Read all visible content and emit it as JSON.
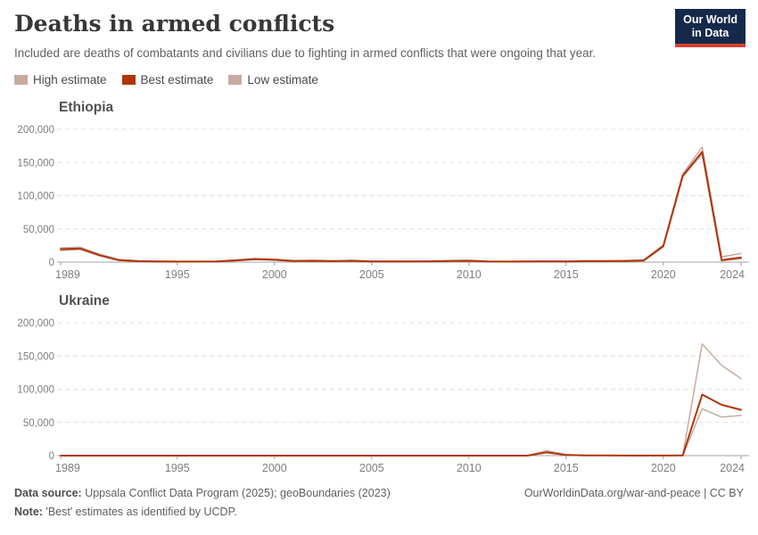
{
  "header": {
    "title": "Deaths in armed conflicts",
    "subtitle": "Included are deaths of combatants and civilians due to fighting in armed conflicts that were ongoing that year.",
    "logo": {
      "line1": "Our World",
      "line2": "in Data"
    }
  },
  "legend": {
    "items": [
      {
        "label": "High estimate",
        "color": "#C7ABA1"
      },
      {
        "label": "Best estimate",
        "color": "#B13507"
      },
      {
        "label": "Low estimate",
        "color": "#C7ABA1"
      }
    ]
  },
  "colors": {
    "best_line": "#B13507",
    "band_line": "#C7ABA1",
    "grid": "#e0e0e0",
    "axis": "#a3a3a3",
    "tick_text": "#7e7e7e",
    "logo_bg": "#15294B",
    "logo_strip": "#D7402F"
  },
  "footer": {
    "source_label": "Data source:",
    "source_text": " Uppsala Conflict Data Program (2025); geoBoundaries (2023)",
    "note_label": "Note:",
    "note_text": " 'Best' estimates as identified by UCDP.",
    "right_text": "OurWorldinData.org/war-and-peace | CC BY"
  },
  "chart_data": [
    {
      "type": "line",
      "title": "Ethiopia",
      "xlabel": "",
      "ylabel": "",
      "ylim": [
        0,
        200000
      ],
      "yticks": [
        0,
        50000,
        100000,
        150000,
        200000
      ],
      "xticks": [
        1989,
        1995,
        2000,
        2005,
        2010,
        2015,
        2020,
        2024
      ],
      "grid": true,
      "x": [
        1989,
        1990,
        1991,
        1992,
        1993,
        1994,
        1995,
        1996,
        1997,
        1998,
        1999,
        2000,
        2001,
        2002,
        2003,
        2004,
        2005,
        2006,
        2007,
        2008,
        2009,
        2010,
        2011,
        2012,
        2013,
        2014,
        2015,
        2016,
        2017,
        2018,
        2019,
        2020,
        2021,
        2022,
        2023,
        2024
      ],
      "series": [
        {
          "name": "High estimate",
          "color": "#C7ABA1",
          "width": 1.5,
          "values": [
            21500,
            22500,
            12000,
            4000,
            2000,
            1500,
            1200,
            1200,
            1500,
            3500,
            5500,
            4500,
            2500,
            2800,
            2200,
            2800,
            1500,
            1500,
            1500,
            1800,
            2500,
            2800,
            1500,
            1200,
            1500,
            1800,
            1500,
            2200,
            2200,
            2500,
            3500,
            26000,
            133000,
            173000,
            8000,
            13000
          ]
        },
        {
          "name": "Low estimate",
          "color": "#C7ABA1",
          "width": 1.5,
          "values": [
            17500,
            19000,
            9500,
            2500,
            1200,
            800,
            600,
            600,
            800,
            2000,
            4000,
            3000,
            1500,
            1700,
            1200,
            1700,
            800,
            800,
            800,
            1000,
            1500,
            1700,
            800,
            600,
            800,
            1000,
            800,
            1200,
            1200,
            1500,
            2000,
            23000,
            128000,
            163000,
            2000,
            5000
          ]
        },
        {
          "name": "Best estimate",
          "color": "#B13507",
          "width": 2,
          "values": [
            19500,
            20500,
            10500,
            3000,
            1500,
            1000,
            800,
            800,
            1000,
            2500,
            4500,
            3500,
            1800,
            2000,
            1500,
            2000,
            1000,
            1000,
            1000,
            1200,
            1800,
            2000,
            1000,
            800,
            1000,
            1200,
            1000,
            1500,
            1500,
            1800,
            2500,
            24000,
            130000,
            166000,
            3000,
            7000
          ]
        }
      ]
    },
    {
      "type": "line",
      "title": "Ukraine",
      "xlabel": "",
      "ylabel": "",
      "ylim": [
        0,
        200000
      ],
      "yticks": [
        0,
        50000,
        100000,
        150000,
        200000
      ],
      "xticks": [
        1989,
        1995,
        2000,
        2005,
        2010,
        2015,
        2020,
        2024
      ],
      "grid": true,
      "x": [
        1989,
        1990,
        1991,
        1992,
        1993,
        1994,
        1995,
        1996,
        1997,
        1998,
        1999,
        2000,
        2001,
        2002,
        2003,
        2004,
        2005,
        2006,
        2007,
        2008,
        2009,
        2010,
        2011,
        2012,
        2013,
        2014,
        2015,
        2016,
        2017,
        2018,
        2019,
        2020,
        2021,
        2022,
        2023,
        2024
      ],
      "series": [
        {
          "name": "High estimate",
          "color": "#C7ABA1",
          "width": 1.5,
          "values": [
            0,
            0,
            0,
            0,
            0,
            0,
            0,
            0,
            0,
            0,
            0,
            0,
            0,
            0,
            0,
            0,
            0,
            0,
            0,
            0,
            0,
            0,
            0,
            0,
            0,
            7500,
            1500,
            500,
            400,
            300,
            200,
            150,
            400,
            168000,
            136000,
            116000
          ]
        },
        {
          "name": "Low estimate",
          "color": "#C7ABA1",
          "width": 1.5,
          "values": [
            0,
            0,
            0,
            0,
            0,
            0,
            0,
            0,
            0,
            0,
            0,
            0,
            0,
            0,
            0,
            0,
            0,
            0,
            0,
            0,
            0,
            0,
            0,
            0,
            0,
            4300,
            800,
            300,
            200,
            150,
            100,
            70,
            200,
            70500,
            58000,
            60500
          ]
        },
        {
          "name": "Best estimate",
          "color": "#B13507",
          "width": 2,
          "values": [
            0,
            0,
            0,
            0,
            0,
            0,
            0,
            0,
            0,
            0,
            0,
            0,
            0,
            0,
            0,
            0,
            0,
            0,
            0,
            0,
            0,
            0,
            0,
            0,
            0,
            5000,
            1000,
            350,
            250,
            200,
            120,
            90,
            250,
            92000,
            76500,
            69000
          ]
        }
      ]
    }
  ]
}
